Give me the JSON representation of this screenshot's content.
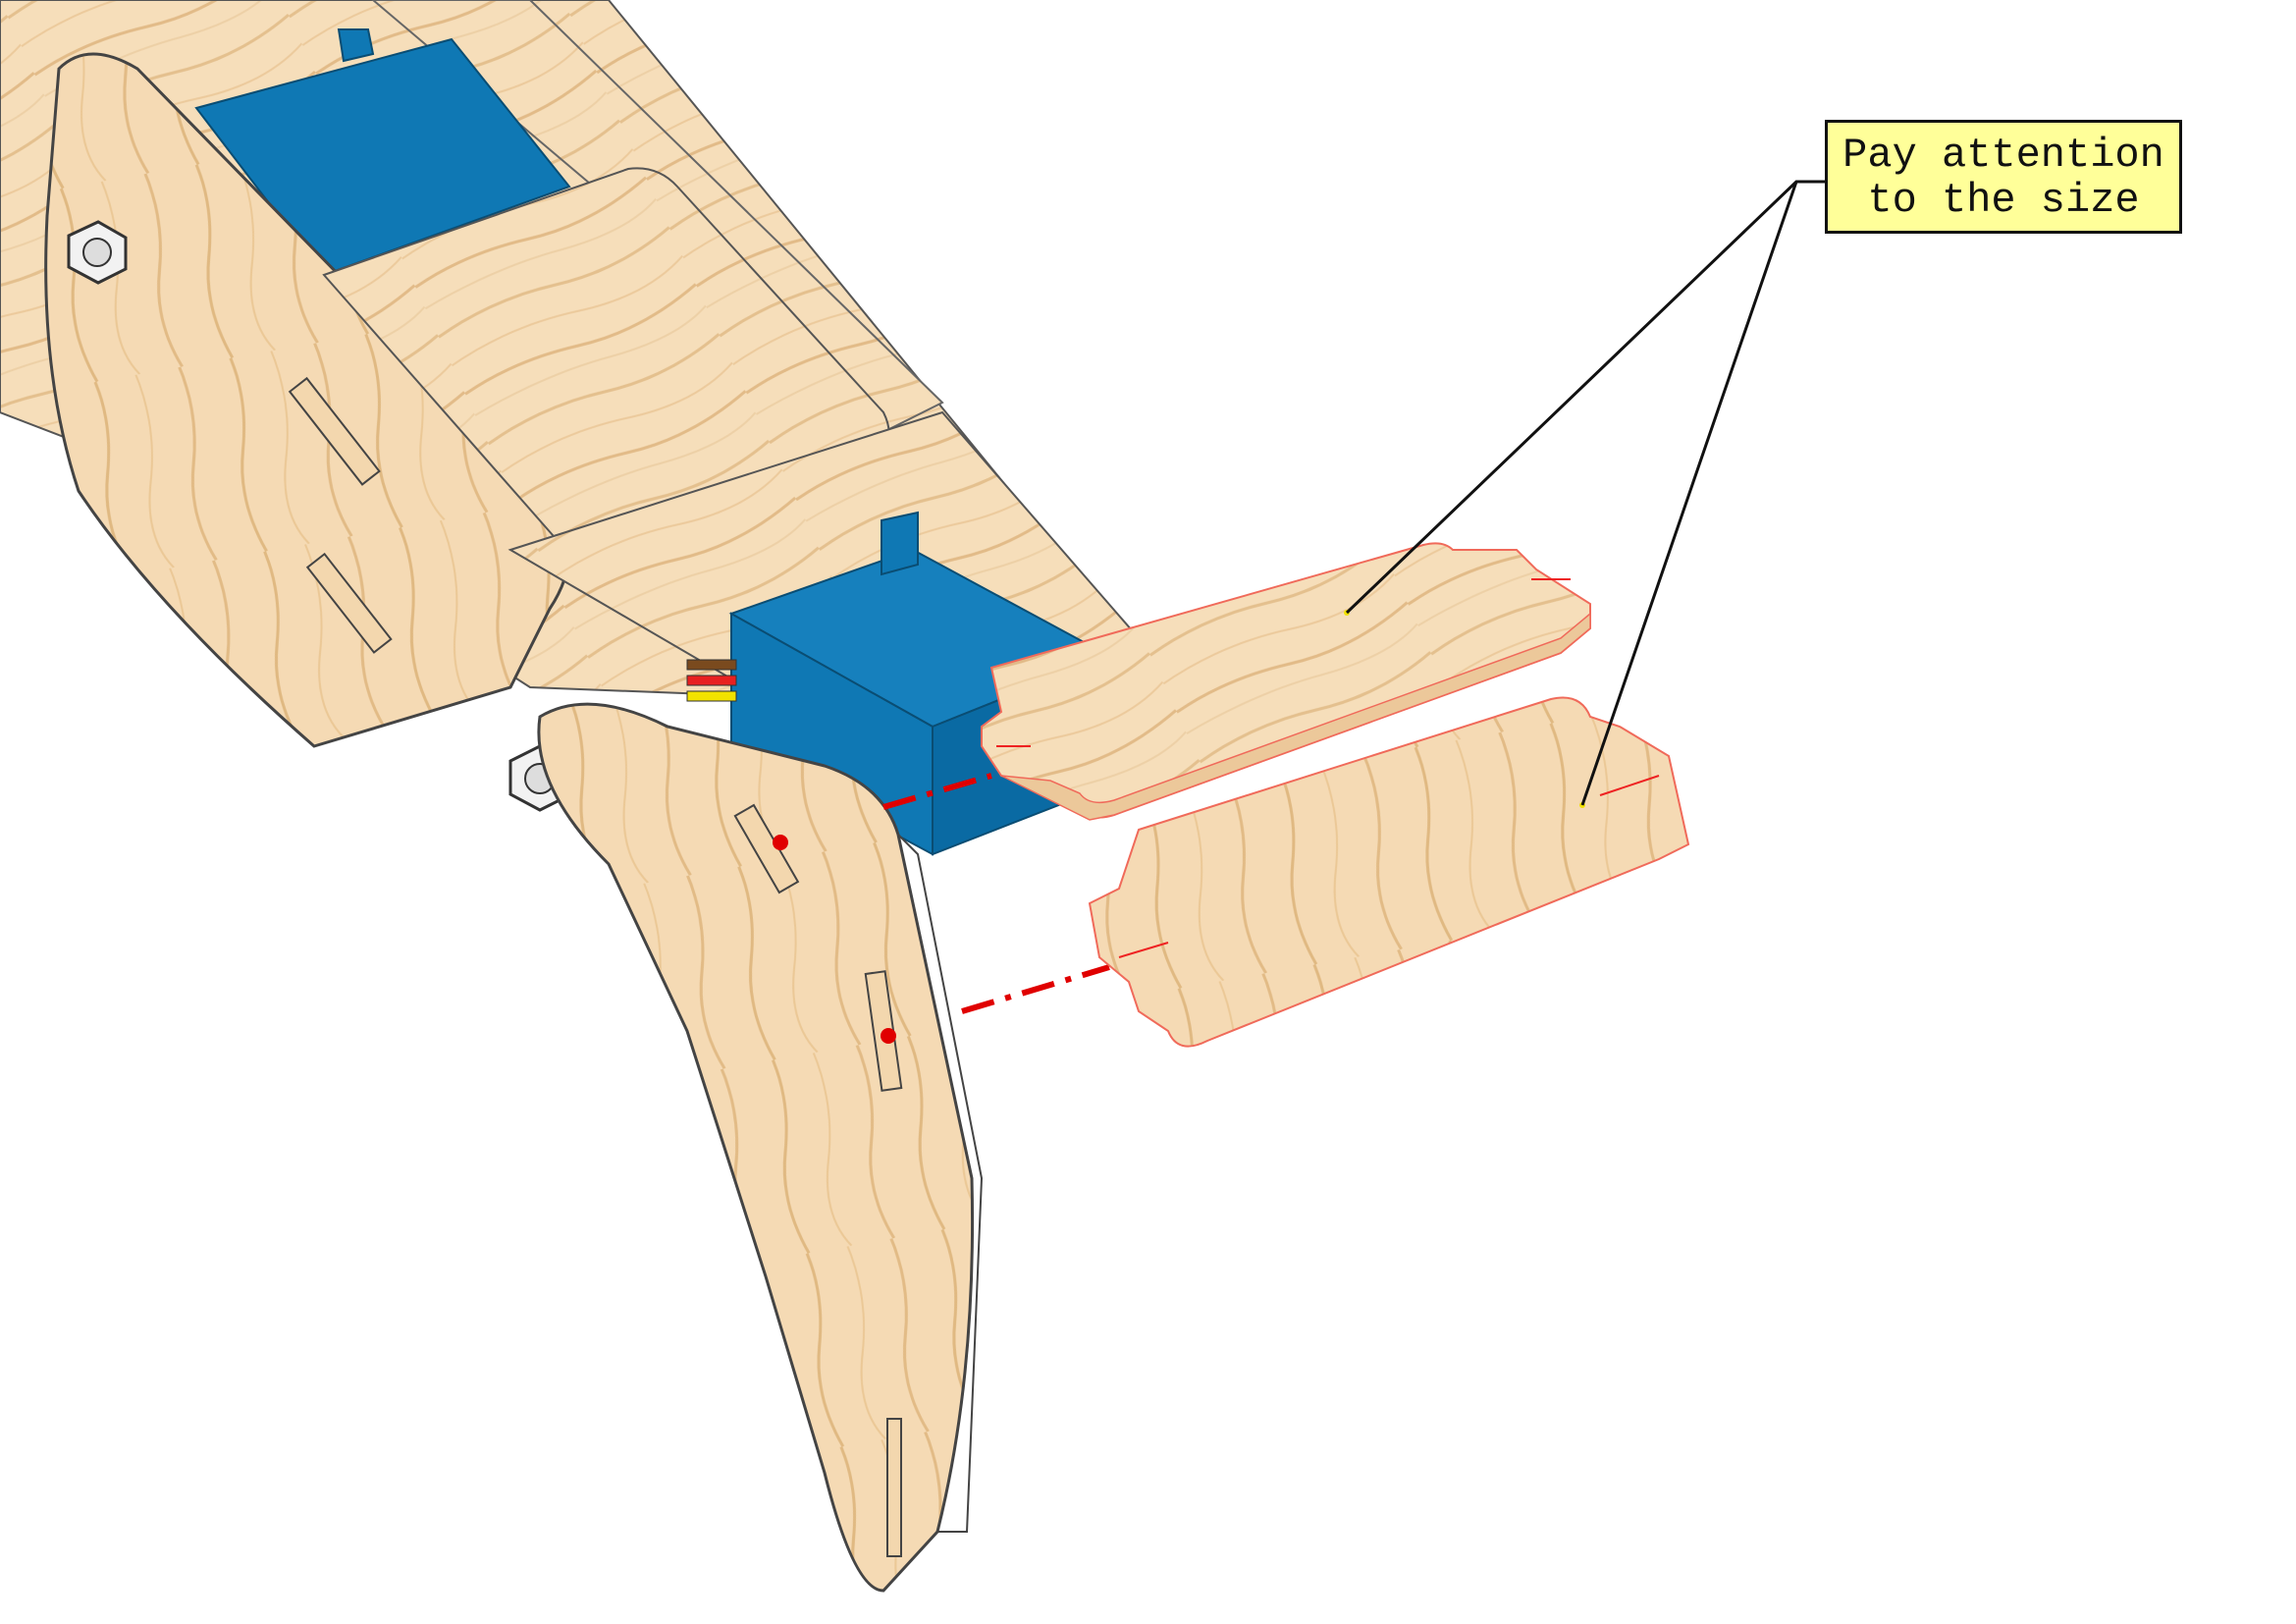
{
  "callout": {
    "line1": "Pay attention",
    "line2": "to the size"
  },
  "colors": {
    "wood": "#f5dcb7",
    "wood_grain": "#e2bc8a",
    "wood_edge": "#e8c9a0",
    "servo_blue": "#0f78b4",
    "servo_blue_dark": "#0a5e8e",
    "cutout_outline": "#f06a5a",
    "guide_line": "#e00000",
    "callout_fill": "#ffff99",
    "wire_brown": "#7a4a1e",
    "wire_red": "#e82020",
    "wire_yellow": "#f2e200"
  }
}
